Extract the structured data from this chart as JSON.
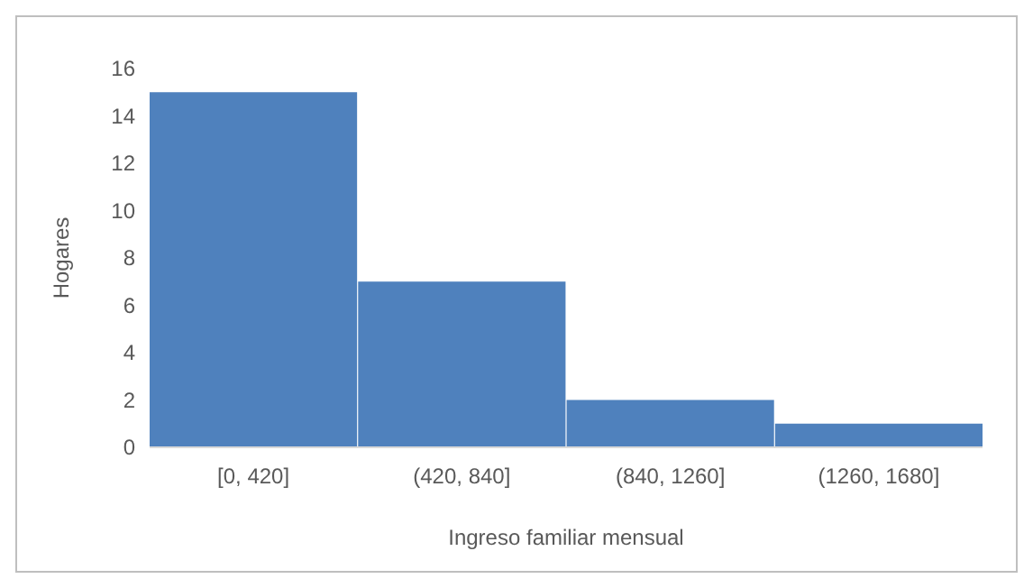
{
  "chart_data": {
    "type": "bar",
    "xlabel": "Ingreso familiar mensual",
    "ylabel": "Hogares",
    "categories": [
      "[0, 420]",
      "(420, 840]",
      "(840, 1260]",
      "(1260, 1680]"
    ],
    "values": [
      15,
      7,
      2,
      1
    ],
    "color": "#4f81bd",
    "ylim": [
      0,
      16
    ],
    "yticks": [
      0,
      2,
      4,
      6,
      8,
      10,
      12,
      14,
      16
    ],
    "grid": false
  }
}
